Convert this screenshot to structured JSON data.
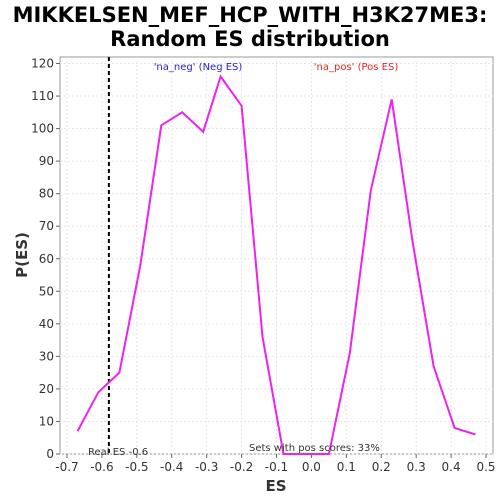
{
  "chart_data": {
    "type": "line",
    "title_line1": "MIKKELSEN_MEF_HCP_WITH_H3K27ME3:",
    "title_line2": "Random ES distribution",
    "xlabel": "ES",
    "ylabel": "P(ES)",
    "xlim": [
      -0.72,
      0.52
    ],
    "ylim": [
      0,
      122
    ],
    "x_ticks": [
      -0.7,
      -0.6,
      -0.5,
      -0.4,
      -0.3,
      -0.2,
      -0.1,
      0.0,
      0.1,
      0.2,
      0.3,
      0.4,
      0.5
    ],
    "y_ticks": [
      0,
      10,
      20,
      30,
      40,
      50,
      60,
      70,
      80,
      90,
      100,
      110,
      120
    ],
    "grid": true,
    "line_color": "#ee22ee",
    "series": [
      {
        "x": [
          -0.67,
          -0.61,
          -0.55,
          -0.49,
          -0.43,
          -0.37,
          -0.31,
          -0.26,
          -0.2,
          -0.14,
          -0.08,
          -0.02,
          0.05,
          0.11,
          0.17,
          0.23,
          0.29,
          0.35,
          0.41,
          0.47
        ],
        "y": [
          7,
          19,
          25,
          58,
          101,
          105,
          99,
          116,
          107,
          36,
          0,
          0,
          0,
          31,
          81,
          109,
          65,
          27,
          8,
          6
        ]
      }
    ],
    "real_es": -0.58,
    "annotations": {
      "neg_label": "'na_neg' (Neg ES)",
      "neg_color": "#2222dd",
      "pos_label": "'na_pos' (Pos ES)",
      "pos_color": "#ee2222",
      "real_es_label": "Real ES -0.6",
      "pos_scores_label": "Sets with pos scores: 33%"
    }
  }
}
